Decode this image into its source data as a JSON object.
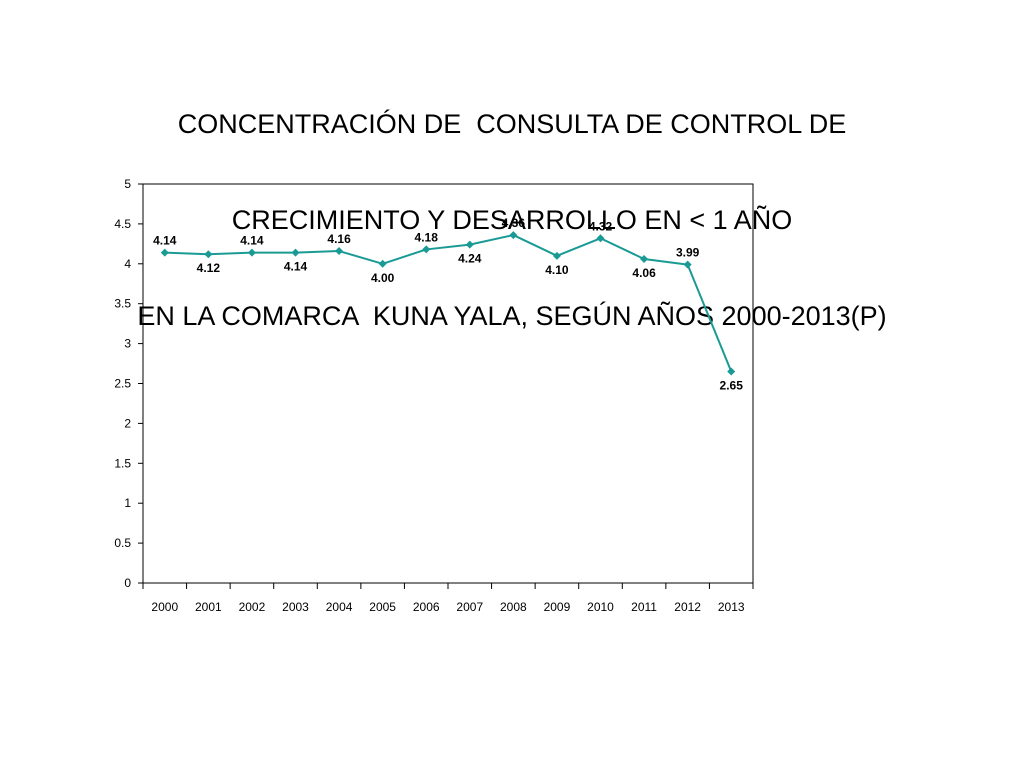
{
  "chart_data": {
    "type": "line",
    "title_lines": [
      "CONCENTRACIÓN DE  CONSULTA DE CONTROL DE",
      "CRECIMIENTO Y DESARROLLO EN < 1 AÑO",
      "EN LA COMARCA  KUNA YALA, SEGÚN AÑOS 2000-2013(P)"
    ],
    "categories": [
      "2000",
      "2001",
      "2002",
      "2003",
      "2004",
      "2005",
      "2006",
      "2007",
      "2008",
      "2009",
      "2010",
      "2011",
      "2012",
      "2013"
    ],
    "series": [
      {
        "values": [
          4.14,
          4.12,
          4.14,
          4.14,
          4.16,
          4.0,
          4.18,
          4.24,
          4.36,
          4.1,
          4.32,
          4.06,
          3.99,
          2.65
        ],
        "labels": [
          "4.14",
          "4.12",
          "4.14",
          "4.14",
          "4.16",
          "4.00",
          "4.18",
          "4.24",
          "4.36",
          "4.10",
          "4.32",
          "4.06",
          "3.99",
          "2.65"
        ],
        "color": "#1a9a95"
      }
    ],
    "ylim": [
      0,
      5
    ],
    "yticks": [
      "0",
      "0.5",
      "1",
      "1.5",
      "2",
      "2.5",
      "3",
      "3.5",
      "4",
      "4.5",
      "5"
    ],
    "label_positions": [
      "above",
      "below",
      "above",
      "below",
      "above",
      "below",
      "above",
      "below",
      "above",
      "below",
      "above",
      "below",
      "above",
      "below"
    ],
    "grid": false,
    "legend": "none"
  }
}
